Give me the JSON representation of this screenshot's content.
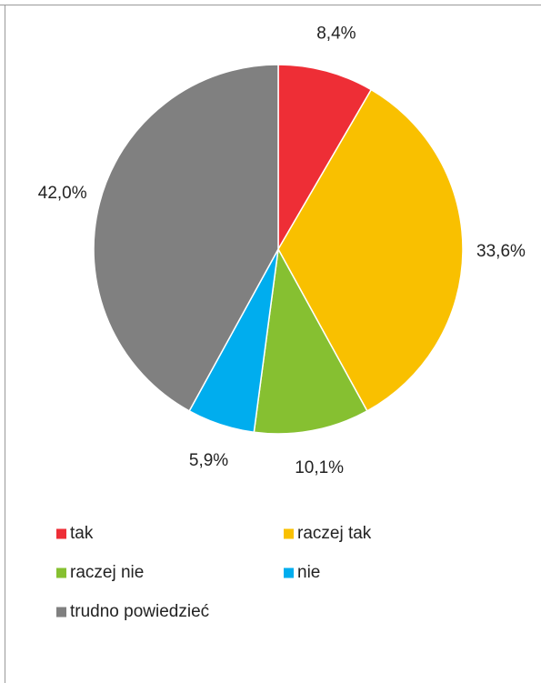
{
  "chart_data": {
    "type": "pie",
    "categories": [
      "tak",
      "raczej tak",
      "raczej nie",
      "nie",
      "trudno powiedzieć"
    ],
    "values": [
      8.4,
      33.6,
      10.1,
      5.9,
      42.0
    ],
    "value_labels": [
      "8,4%",
      "33,6%",
      "10,1%",
      "5,9%",
      "42,0%"
    ],
    "colors": [
      "#ee2e36",
      "#f9c000",
      "#86c031",
      "#00adee",
      "#808080"
    ],
    "legend": "bottom"
  }
}
